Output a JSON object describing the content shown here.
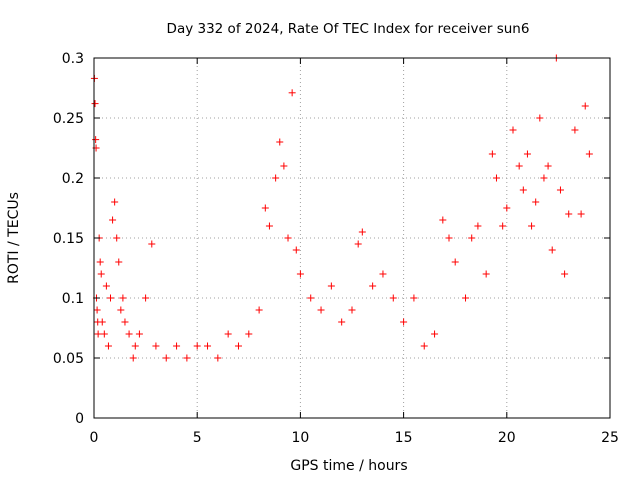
{
  "chart_data": {
    "type": "scatter",
    "title": "Day 332 of 2024, Rate Of TEC Index for receiver sun6",
    "xlabel": "GPS time / hours",
    "ylabel": "ROTI / TECUs",
    "xlim": [
      0,
      25
    ],
    "ylim": [
      0,
      0.3
    ],
    "xticks": [
      "0",
      "5",
      "10",
      "15",
      "20",
      "25"
    ],
    "yticks": [
      "0",
      "0.05",
      "0.1",
      "0.15",
      "0.2",
      "0.25",
      "0.3"
    ],
    "grid": true,
    "marker": "+",
    "color": "#ff0000",
    "series": [
      {
        "name": "ROTI",
        "x": [
          0.02,
          0.05,
          0.08,
          0.1,
          0.12,
          0.15,
          0.18,
          0.2,
          0.25,
          0.3,
          0.35,
          0.4,
          0.5,
          0.6,
          0.7,
          0.8,
          0.9,
          1.0,
          1.1,
          1.2,
          1.3,
          1.4,
          1.5,
          1.7,
          1.9,
          2.0,
          2.2,
          2.5,
          2.8,
          3.0,
          3.5,
          4.0,
          4.5,
          5.0,
          5.5,
          6.0,
          6.5,
          7.0,
          7.5,
          8.0,
          8.3,
          8.5,
          8.8,
          9.0,
          9.2,
          9.4,
          9.6,
          9.8,
          10.0,
          10.5,
          11.0,
          11.5,
          12.0,
          12.5,
          12.8,
          13.0,
          13.5,
          14.0,
          14.5,
          15.0,
          15.5,
          16.0,
          16.5,
          16.9,
          17.2,
          17.5,
          18.0,
          18.3,
          18.6,
          19.0,
          19.3,
          19.5,
          19.8,
          20.0,
          20.3,
          20.6,
          20.8,
          21.0,
          21.2,
          21.4,
          21.6,
          21.8,
          22.0,
          22.2,
          22.4,
          22.6,
          22.8,
          23.0,
          23.3,
          23.6,
          23.8,
          24.0
        ],
        "y": [
          0.283,
          0.262,
          0.232,
          0.225,
          0.1,
          0.09,
          0.08,
          0.07,
          0.15,
          0.13,
          0.12,
          0.08,
          0.07,
          0.11,
          0.06,
          0.1,
          0.165,
          0.18,
          0.15,
          0.13,
          0.09,
          0.1,
          0.08,
          0.07,
          0.05,
          0.06,
          0.07,
          0.1,
          0.145,
          0.06,
          0.05,
          0.06,
          0.05,
          0.06,
          0.06,
          0.05,
          0.07,
          0.06,
          0.07,
          0.09,
          0.175,
          0.16,
          0.2,
          0.23,
          0.21,
          0.15,
          0.271,
          0.14,
          0.12,
          0.1,
          0.09,
          0.11,
          0.08,
          0.09,
          0.145,
          0.155,
          0.11,
          0.12,
          0.1,
          0.08,
          0.1,
          0.06,
          0.07,
          0.165,
          0.15,
          0.13,
          0.1,
          0.15,
          0.16,
          0.12,
          0.22,
          0.2,
          0.16,
          0.175,
          0.24,
          0.21,
          0.19,
          0.22,
          0.16,
          0.18,
          0.25,
          0.2,
          0.21,
          0.14,
          0.3,
          0.19,
          0.12,
          0.17,
          0.24,
          0.17,
          0.26,
          0.22
        ]
      }
    ]
  }
}
